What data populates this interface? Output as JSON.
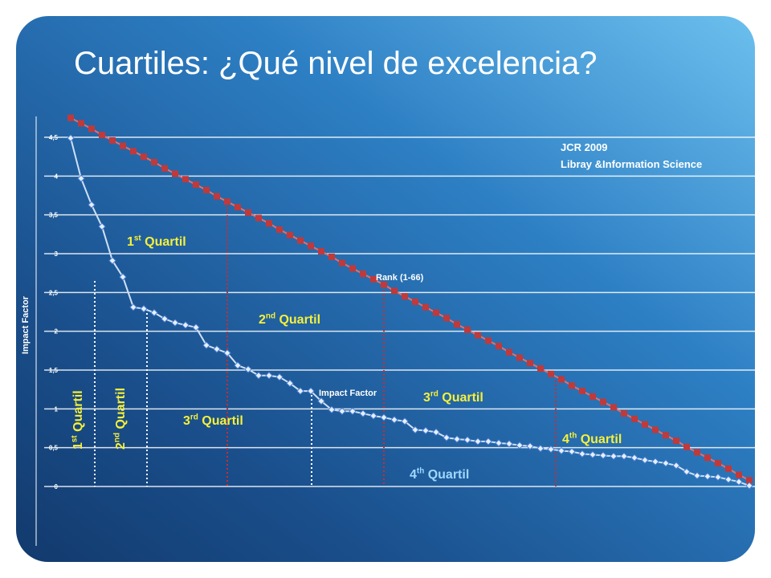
{
  "title": "Cuartiles: ¿Qué nivel de excelencia?",
  "chart_data": {
    "type": "line",
    "y_label": "Impact Factor",
    "source_lines": [
      "JCR 2009",
      "Libray &Information Science"
    ],
    "ylim": [
      0,
      4.8
    ],
    "yticks": [
      0,
      {
        "value": 0.5,
        "label": "0,5"
      },
      1,
      {
        "value": 1.5,
        "label": "1,5"
      },
      2,
      {
        "value": 2.5,
        "label": "2,5"
      },
      3,
      {
        "value": 3.5,
        "label": "3,5"
      },
      4,
      {
        "value": 4.5,
        "label": "4,5"
      }
    ],
    "grid": true,
    "series": [
      {
        "name": "Rank (1-66)",
        "color": "#c0393b",
        "marker": "square",
        "values": [
          4.75,
          4.68,
          4.61,
          4.53,
          4.46,
          4.39,
          4.32,
          4.25,
          4.18,
          4.1,
          4.03,
          3.96,
          3.89,
          3.82,
          3.74,
          3.67,
          3.6,
          3.53,
          3.46,
          3.39,
          3.31,
          3.24,
          3.17,
          3.1,
          3.03,
          2.96,
          2.88,
          2.81,
          2.74,
          2.67,
          2.6,
          2.52,
          2.45,
          2.38,
          2.31,
          2.24,
          2.17,
          2.09,
          2.02,
          1.95,
          1.88,
          1.81,
          1.73,
          1.66,
          1.59,
          1.52,
          1.45,
          1.38,
          1.3,
          1.23,
          1.16,
          1.09,
          1.02,
          0.94,
          0.87,
          0.8,
          0.73,
          0.66,
          0.59,
          0.51,
          0.44,
          0.37,
          0.3,
          0.23,
          0.15,
          0.08
        ]
      },
      {
        "name": "Impact Factor",
        "color": "#4a7fd0",
        "marker": "diamond",
        "values": [
          4.49,
          3.97,
          3.63,
          3.35,
          2.91,
          2.7,
          2.31,
          2.29,
          2.24,
          2.16,
          2.11,
          2.08,
          2.05,
          1.82,
          1.77,
          1.72,
          1.56,
          1.51,
          1.43,
          1.43,
          1.41,
          1.33,
          1.23,
          1.23,
          1.1,
          0.99,
          0.97,
          0.97,
          0.94,
          0.91,
          0.89,
          0.86,
          0.84,
          0.73,
          0.72,
          0.7,
          0.63,
          0.61,
          0.6,
          0.58,
          0.58,
          0.56,
          0.55,
          0.53,
          0.52,
          0.49,
          0.48,
          0.46,
          0.45,
          0.42,
          0.41,
          0.4,
          0.39,
          0.39,
          0.37,
          0.34,
          0.32,
          0.3,
          0.27,
          0.19,
          0.14,
          0.13,
          0.12,
          0.09,
          0.06,
          0.01
        ]
      }
    ],
    "annotations": [
      {
        "number": "1",
        "suffix": "st",
        "text": " Quartil"
      },
      {
        "number": "2",
        "suffix": "nd",
        "text": " Quartil"
      },
      {
        "number": "3",
        "suffix": "rd",
        "text": " Quartil"
      },
      {
        "number": "3",
        "suffix": "rd",
        "text": " Quartil"
      },
      {
        "number": "4",
        "suffix": "th",
        "text": " Quartil"
      },
      {
        "number": "4",
        "suffix": "th",
        "text": " Quartil"
      },
      {
        "number": "1",
        "suffix": "st",
        "text": " Quartil"
      },
      {
        "number": "2",
        "suffix": "nd",
        "text": " Quartil"
      }
    ]
  }
}
